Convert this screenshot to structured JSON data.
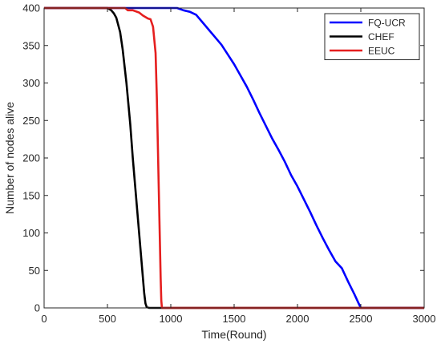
{
  "chart_data": {
    "type": "line",
    "title": "",
    "xlabel": "Time(Round)",
    "ylabel": "Number of nodes alive",
    "xlim": [
      0,
      3000
    ],
    "ylim": [
      0,
      400
    ],
    "xticks": [
      0,
      500,
      1000,
      1500,
      2000,
      2500,
      3000
    ],
    "yticks": [
      0,
      50,
      100,
      150,
      200,
      250,
      300,
      350,
      400
    ],
    "grid": false,
    "legend_position": "top-right",
    "series": [
      {
        "name": "FQ-UCR",
        "color": "#0000ff",
        "points": [
          [
            0,
            400
          ],
          [
            1050,
            400
          ],
          [
            1100,
            397
          ],
          [
            1150,
            395
          ],
          [
            1200,
            391
          ],
          [
            1250,
            381
          ],
          [
            1300,
            371
          ],
          [
            1350,
            361
          ],
          [
            1400,
            351
          ],
          [
            1450,
            338
          ],
          [
            1500,
            325
          ],
          [
            1550,
            310
          ],
          [
            1600,
            295
          ],
          [
            1650,
            278
          ],
          [
            1700,
            260
          ],
          [
            1750,
            243
          ],
          [
            1800,
            226
          ],
          [
            1850,
            211
          ],
          [
            1900,
            195
          ],
          [
            1950,
            177
          ],
          [
            2000,
            162
          ],
          [
            2050,
            145
          ],
          [
            2100,
            128
          ],
          [
            2150,
            110
          ],
          [
            2200,
            93
          ],
          [
            2250,
            77
          ],
          [
            2300,
            62
          ],
          [
            2350,
            53
          ],
          [
            2400,
            35
          ],
          [
            2450,
            18
          ],
          [
            2480,
            7
          ],
          [
            2500,
            0
          ],
          [
            3000,
            0
          ]
        ]
      },
      {
        "name": "CHEF",
        "color": "#000000",
        "points": [
          [
            0,
            400
          ],
          [
            500,
            400
          ],
          [
            530,
            397
          ],
          [
            550,
            393
          ],
          [
            570,
            387
          ],
          [
            600,
            368
          ],
          [
            620,
            345
          ],
          [
            650,
            300
          ],
          [
            680,
            245
          ],
          [
            700,
            200
          ],
          [
            720,
            160
          ],
          [
            740,
            120
          ],
          [
            760,
            80
          ],
          [
            775,
            50
          ],
          [
            790,
            20
          ],
          [
            800,
            6
          ],
          [
            810,
            1
          ],
          [
            830,
            0
          ],
          [
            3000,
            0
          ]
        ]
      },
      {
        "name": "EEUC",
        "color": "#e51f1f",
        "points": [
          [
            0,
            400
          ],
          [
            640,
            400
          ],
          [
            660,
            397
          ],
          [
            700,
            397
          ],
          [
            750,
            394
          ],
          [
            780,
            390
          ],
          [
            800,
            388
          ],
          [
            820,
            386
          ],
          [
            840,
            385
          ],
          [
            860,
            375
          ],
          [
            880,
            340
          ],
          [
            890,
            280
          ],
          [
            900,
            200
          ],
          [
            910,
            120
          ],
          [
            920,
            40
          ],
          [
            925,
            10
          ],
          [
            930,
            0
          ],
          [
            3000,
            0
          ]
        ]
      }
    ]
  }
}
